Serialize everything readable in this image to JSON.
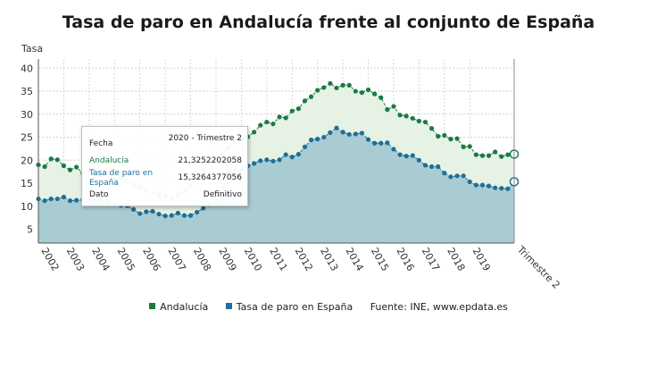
{
  "title": "Tasa de paro en Andalucía frente al conjunto de España",
  "legend": {
    "andalucia": "Andalucía",
    "espana": "Tasa de paro en España",
    "source": "Fuente: INE, www.epdata.es"
  },
  "colors": {
    "andalucia": "#1a7a45",
    "espana": "#1d6f9a",
    "andalucia_fill": "#e6f2e4",
    "espana_fill": "#a9ccd3"
  },
  "tooltip": {
    "fecha_label": "Fecha",
    "fecha_value": "2020 - Trimestre 2",
    "andalucia_label": "Andalucía",
    "andalucia_value": "21,3252202058",
    "espana_label": "Tasa de paro en España",
    "espana_value": "15,3264377056",
    "dato_label": "Dato",
    "dato_value": "Definitivo"
  },
  "chart_data": {
    "type": "area",
    "title": "Tasa de paro en Andalucía frente al conjunto de España",
    "ylabel": "Tasa",
    "xlabel": "",
    "ylim": [
      2,
      42
    ],
    "y_ticks": [
      5,
      10,
      15,
      20,
      25,
      30,
      35,
      40
    ],
    "x_labels": [
      "2002",
      "2003",
      "2004",
      "2005",
      "2006",
      "2007",
      "2008",
      "2009",
      "2010",
      "2011",
      "2012",
      "2013",
      "2014",
      "2015",
      "2016",
      "2017",
      "2018",
      "2019",
      "Trimestre 2"
    ],
    "grid": true,
    "legend_position": "bottom",
    "series": [
      {
        "name": "Andalucía",
        "values": [
          19.0,
          18.6,
          20.3,
          20.1,
          18.8,
          17.9,
          18.5,
          17.2,
          17.8,
          17.2,
          16.9,
          17.2,
          15.9,
          16.2,
          15.5,
          14.6,
          14.2,
          13.5,
          13.0,
          12.6,
          12.3,
          11.8,
          12.4,
          13.2,
          14.6,
          16.4,
          17.9,
          19.4,
          20.1,
          21.3,
          22.8,
          23.9,
          24.6,
          25.1,
          26.1,
          27.6,
          28.3,
          27.9,
          29.4,
          29.2,
          30.7,
          31.2,
          32.9,
          33.8,
          35.2,
          35.8,
          36.7,
          35.7,
          36.3,
          36.3,
          35.0,
          34.7,
          35.3,
          34.4,
          33.6,
          31.0,
          31.7,
          29.8,
          29.6,
          29.1,
          28.5,
          28.3,
          26.9,
          25.2,
          25.4,
          24.6,
          24.7,
          22.9,
          23.0,
          21.2,
          21.0,
          21.0,
          21.8,
          20.8,
          21.2,
          21.33
        ],
        "last_value": 21.3252202058
      },
      {
        "name": "Tasa de paro en España",
        "values": [
          11.6,
          11.2,
          11.6,
          11.6,
          12.0,
          11.2,
          11.3,
          11.4,
          11.5,
          11.1,
          11.5,
          10.9,
          10.5,
          10.2,
          10.1,
          9.3,
          8.4,
          8.8,
          8.9,
          8.3,
          7.9,
          8.0,
          8.5,
          8.0,
          8.0,
          8.7,
          9.6,
          10.4,
          11.3,
          13.9,
          17.4,
          17.9,
          17.9,
          18.8,
          19.3,
          19.9,
          20.1,
          19.8,
          20.1,
          21.2,
          20.7,
          21.3,
          22.9,
          24.4,
          24.6,
          25.0,
          26.0,
          27.0,
          26.1,
          25.6,
          25.7,
          25.9,
          24.5,
          23.7,
          23.7,
          23.8,
          22.4,
          21.2,
          20.9,
          21.0,
          20.0,
          18.9,
          18.6,
          18.6,
          17.2,
          16.4,
          16.6,
          16.6,
          15.3,
          14.6,
          14.6,
          14.4,
          14.0,
          13.9,
          13.8,
          15.33
        ],
        "last_value": 15.3264377056
      }
    ]
  }
}
